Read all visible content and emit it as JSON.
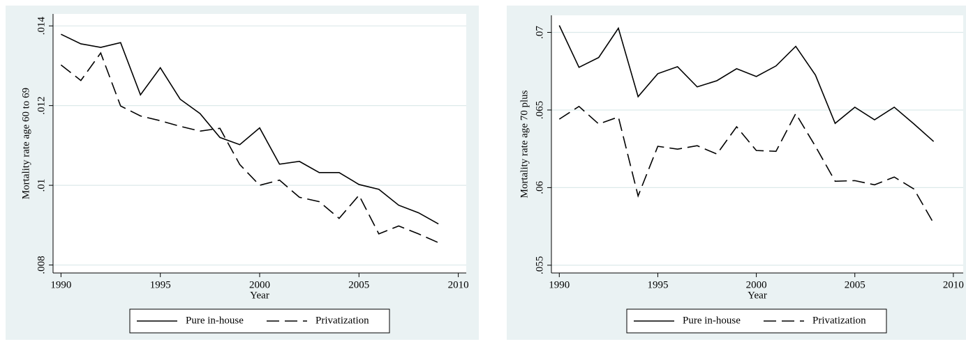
{
  "chart_data": [
    {
      "type": "line",
      "x_label": "Year",
      "y_label": "Mortality rate age 60 to 69",
      "x": [
        1990,
        1991,
        1992,
        1993,
        1994,
        1995,
        1996,
        1997,
        1998,
        1999,
        2000,
        2001,
        2002,
        2003,
        2004,
        2005,
        2006,
        2007,
        2008,
        2009
      ],
      "series": [
        {
          "name": "Pure in-house",
          "color": "#000000",
          "dash": "solid",
          "values": [
            0.01379,
            0.01355,
            0.01346,
            0.01358,
            0.01227,
            0.01295,
            0.01216,
            0.0118,
            0.0112,
            0.01102,
            0.01144,
            0.01053,
            0.0106,
            0.01032,
            0.01032,
            0.01002,
            0.0099,
            0.0095,
            0.00931,
            0.00903
          ]
        },
        {
          "name": "Privatization",
          "color": "#000000",
          "dash": "dashed",
          "values": [
            0.01302,
            0.01263,
            0.01332,
            0.01199,
            0.01174,
            0.01162,
            0.01148,
            0.01136,
            0.01143,
            0.01052,
            0.01,
            0.01013,
            0.0097,
            0.00959,
            0.00917,
            0.00975,
            0.00878,
            0.00898,
            0.00878,
            0.00856
          ]
        }
      ],
      "xlim": [
        1989.6,
        2010.4
      ],
      "ylim": [
        0.0078,
        0.0143
      ],
      "xticks": [
        1990,
        1995,
        2000,
        2005,
        2010
      ],
      "yticks": [
        {
          "value": 0.008,
          "label": ".008"
        },
        {
          "value": 0.01,
          "label": ".01"
        },
        {
          "value": 0.012,
          "label": ".012"
        },
        {
          "value": 0.014,
          "label": ".014"
        }
      ],
      "grid": true,
      "legend": "bottom"
    },
    {
      "type": "line",
      "x_label": "Year",
      "y_label": "Mortality rate age 70 plus",
      "x": [
        1990,
        1991,
        1992,
        1993,
        1994,
        1995,
        1996,
        1997,
        1998,
        1999,
        2000,
        2001,
        2002,
        2003,
        2004,
        2005,
        2006,
        2007,
        2008,
        2009
      ],
      "series": [
        {
          "name": "Pure in-house",
          "color": "#000000",
          "dash": "solid",
          "values": [
            0.07045,
            0.06775,
            0.06838,
            0.07027,
            0.06586,
            0.06734,
            0.06779,
            0.06649,
            0.06689,
            0.06766,
            0.06716,
            0.06784,
            0.0691,
            0.06725,
            0.06414,
            0.06518,
            0.06437,
            0.06518,
            0.0641,
            0.06297
          ]
        },
        {
          "name": "Privatization",
          "color": "#000000",
          "dash": "dashed",
          "values": [
            0.06441,
            0.06523,
            0.0641,
            0.06455,
            0.05946,
            0.06266,
            0.06248,
            0.0627,
            0.06216,
            0.06392,
            0.06239,
            0.06234,
            0.06477,
            0.06266,
            0.06041,
            0.06045,
            0.06018,
            0.06068,
            0.05991,
            0.0577
          ]
        }
      ],
      "xlim": [
        1989.6,
        2010.5
      ],
      "ylim": [
        0.0545,
        0.0711
      ],
      "xticks": [
        1990,
        1995,
        2000,
        2005,
        2010
      ],
      "yticks": [
        {
          "value": 0.055,
          "label": ".055"
        },
        {
          "value": 0.06,
          "label": ".06"
        },
        {
          "value": 0.065,
          "label": ".065"
        },
        {
          "value": 0.07,
          "label": ".07"
        }
      ],
      "grid": true,
      "legend": "bottom"
    }
  ]
}
